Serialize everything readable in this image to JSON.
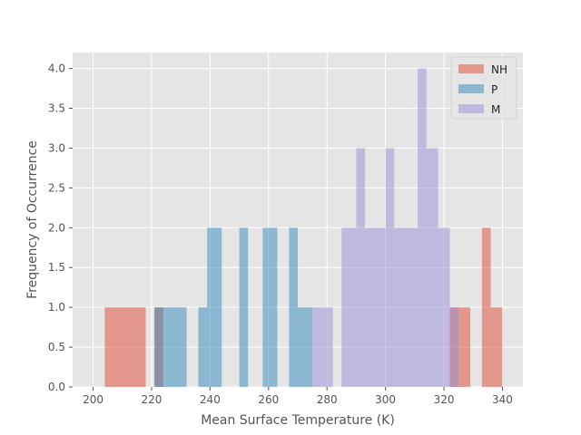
{
  "chart_data": {
    "type": "bar",
    "subtype": "histogram",
    "xlabel": "Mean Surface Temperature (K)",
    "ylabel": "Frequency of Occurrence",
    "xlim": [
      193,
      347
    ],
    "ylim": [
      0,
      4.2
    ],
    "xticks": [
      200,
      220,
      240,
      260,
      280,
      300,
      320,
      340
    ],
    "yticks": [
      0.0,
      0.5,
      1.0,
      1.5,
      2.0,
      2.5,
      3.0,
      3.5,
      4.0
    ],
    "xtick_labels": [
      "200",
      "220",
      "240",
      "260",
      "280",
      "300",
      "320",
      "340"
    ],
    "ytick_labels": [
      "0.0",
      "0.5",
      "1.0",
      "1.5",
      "2.0",
      "2.5",
      "3.0",
      "3.5",
      "4.0"
    ],
    "grid": true,
    "legend_position": "top-right",
    "bar_alpha": 0.5,
    "series": [
      {
        "name": "NH",
        "color": "#E24A33",
        "bins": [
          {
            "x0": 204,
            "x1": 218,
            "count": 1
          },
          {
            "x0": 221,
            "x1": 224,
            "count": 1
          },
          {
            "x0": 322,
            "x1": 325,
            "count": 1
          },
          {
            "x0": 325,
            "x1": 329,
            "count": 1
          },
          {
            "x0": 333,
            "x1": 336,
            "count": 2
          },
          {
            "x0": 336,
            "x1": 340,
            "count": 1
          }
        ]
      },
      {
        "name": "P",
        "color": "#348ABD",
        "bins": [
          {
            "x0": 221,
            "x1": 224,
            "count": 1
          },
          {
            "x0": 224,
            "x1": 232,
            "count": 1
          },
          {
            "x0": 236,
            "x1": 239,
            "count": 1
          },
          {
            "x0": 239,
            "x1": 244,
            "count": 2
          },
          {
            "x0": 250,
            "x1": 253,
            "count": 2
          },
          {
            "x0": 258,
            "x1": 263,
            "count": 2
          },
          {
            "x0": 267,
            "x1": 270,
            "count": 2
          },
          {
            "x0": 270,
            "x1": 275,
            "count": 1
          }
        ]
      },
      {
        "name": "M",
        "color": "#988ED5",
        "bins": [
          {
            "x0": 275,
            "x1": 282,
            "count": 1
          },
          {
            "x0": 285,
            "x1": 290,
            "count": 2
          },
          {
            "x0": 290,
            "x1": 293,
            "count": 3
          },
          {
            "x0": 293,
            "x1": 300,
            "count": 2
          },
          {
            "x0": 300,
            "x1": 303,
            "count": 3
          },
          {
            "x0": 303,
            "x1": 311,
            "count": 2
          },
          {
            "x0": 311,
            "x1": 314,
            "count": 4
          },
          {
            "x0": 314,
            "x1": 318,
            "count": 3
          },
          {
            "x0": 318,
            "x1": 322,
            "count": 2
          },
          {
            "x0": 322,
            "x1": 325,
            "count": 1
          }
        ]
      }
    ]
  }
}
